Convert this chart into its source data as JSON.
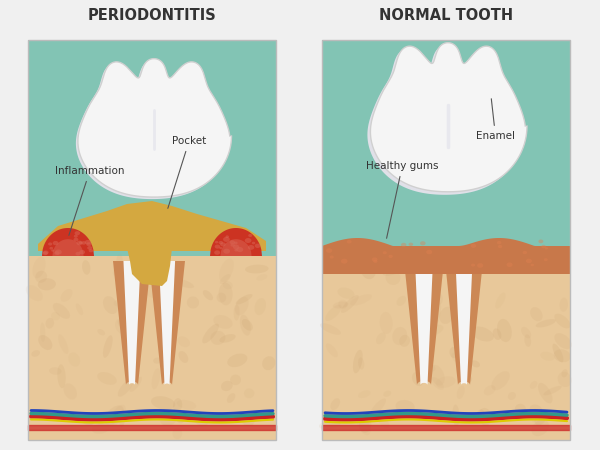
{
  "title_left": "PERIODONTITIS",
  "title_right": "NORMAL TOOTH",
  "label_inflammation": "Inflammation",
  "label_pocket": "Pocket",
  "label_healthy_gums": "Healthy gums",
  "label_enamel": "Enamel",
  "bg_color": "#f0f0f0",
  "panel_bg": "#82c4b4",
  "skin_color": "#e8c89a",
  "skin_dark": "#c8a070",
  "gum_healthy": "#c8784a",
  "gum_inflamed": "#cc3322",
  "gum_inflamed_light": "#d96655",
  "tooth_white": "#f5f5f5",
  "tooth_shadow": "#e0e0e8",
  "tooth_outline": "#d0d0d0",
  "root_outer": "#cc8855",
  "root_inner": "#f5f5f5",
  "plaque_color": "#d4a840",
  "plaque_light": "#e8c060",
  "nerve_red": "#cc2222",
  "nerve_blue": "#2244bb",
  "nerve_teal": "#339988",
  "nerve_yellow": "#ddcc00",
  "title_fontsize": 10.5,
  "label_fontsize": 7.5
}
